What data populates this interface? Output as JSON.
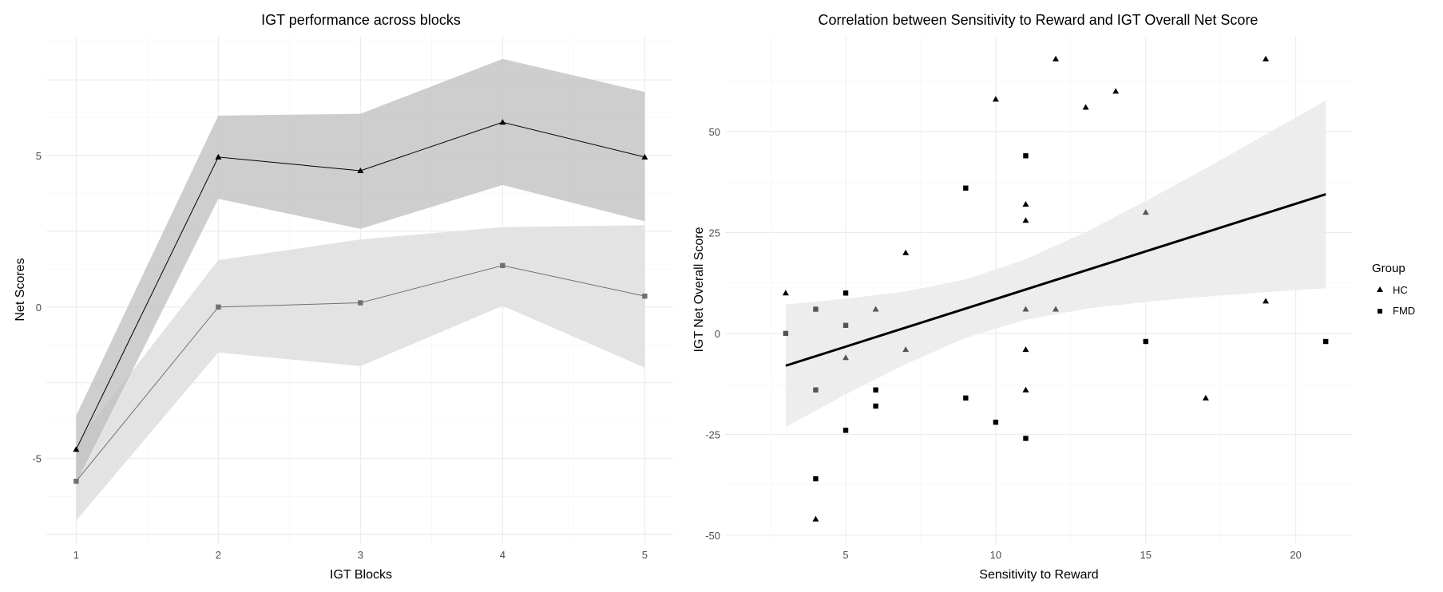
{
  "chart_data": [
    {
      "type": "line",
      "title": "IGT performance across blocks",
      "xlabel": "IGT Blocks",
      "ylabel": "Net Scores",
      "x": [
        1,
        2,
        3,
        4,
        5
      ],
      "xticks": [
        "1",
        "2",
        "3",
        "4",
        "5"
      ],
      "yticks": [
        -5,
        0,
        5
      ],
      "xlim": [
        0.79,
        5.2
      ],
      "ylim": [
        -7.8,
        8.95
      ],
      "grid": true,
      "series": [
        {
          "name": "FMD",
          "marker": "square",
          "color": "#707070",
          "band_color": "#e3e3e3",
          "values": [
            -5.75,
            0.0,
            0.14,
            1.37,
            0.36
          ],
          "upper": [
            -4.5,
            1.55,
            2.23,
            2.64,
            2.7
          ],
          "lower": [
            -7.05,
            -1.5,
            -1.95,
            0.04,
            -2.0
          ]
        },
        {
          "name": "HC",
          "marker": "triangle",
          "color": "#000000",
          "band_color": "#bdbdbd",
          "values": [
            -4.7,
            4.95,
            4.5,
            6.1,
            4.95
          ],
          "upper": [
            -3.58,
            6.32,
            6.38,
            8.19,
            7.1
          ],
          "lower": [
            -5.8,
            3.57,
            2.58,
            4.03,
            2.83
          ]
        }
      ]
    },
    {
      "type": "scatter",
      "title": "Correlation between Sensitivity to Reward and IGT Overall Net Score",
      "xlabel": "Sensitivity to Reward",
      "ylabel": "IGT Net Overall Score",
      "xticks": [
        5,
        10,
        15,
        20
      ],
      "yticks": [
        -50,
        -25,
        0,
        25,
        50
      ],
      "xlim": [
        0.98,
        21.9
      ],
      "ylim": [
        -52,
        73.7
      ],
      "grid": true,
      "legend": {
        "title": "Group",
        "position": "right",
        "entries": [
          {
            "label": "HC",
            "marker": "triangle"
          },
          {
            "label": "FMD",
            "marker": "square"
          }
        ]
      },
      "series": [
        {
          "name": "HC",
          "marker": "triangle",
          "points": [
            [
              12,
              68,
              "#000"
            ],
            [
              19,
              68,
              "#000"
            ],
            [
              10,
              58,
              "#000"
            ],
            [
              13,
              56,
              "#000"
            ],
            [
              14,
              60,
              "#000"
            ],
            [
              11,
              32,
              "#000"
            ],
            [
              11,
              28,
              "#000"
            ],
            [
              7,
              20,
              "#000"
            ],
            [
              3,
              10,
              "#000"
            ],
            [
              15,
              30,
              "#555"
            ],
            [
              6,
              6,
              "#555"
            ],
            [
              11,
              6,
              "#555"
            ],
            [
              12,
              6,
              "#555"
            ],
            [
              19,
              8,
              "#000"
            ],
            [
              5,
              -6,
              "#555"
            ],
            [
              7,
              -4,
              "#555"
            ],
            [
              11,
              -4,
              "#000"
            ],
            [
              11,
              -14,
              "#000"
            ],
            [
              17,
              -16,
              "#000"
            ],
            [
              4,
              -46,
              "#000"
            ]
          ]
        },
        {
          "name": "FMD",
          "marker": "square",
          "points": [
            [
              11,
              44,
              "#000"
            ],
            [
              9,
              36,
              "#000"
            ],
            [
              5,
              10,
              "#000"
            ],
            [
              4,
              6,
              "#555"
            ],
            [
              5,
              2,
              "#555"
            ],
            [
              3,
              0,
              "#555"
            ],
            [
              15,
              -2,
              "#000"
            ],
            [
              21,
              -2,
              "#000"
            ],
            [
              4,
              -14,
              "#555"
            ],
            [
              6,
              -14,
              "#000"
            ],
            [
              6,
              -18,
              "#000"
            ],
            [
              9,
              -16,
              "#000"
            ],
            [
              10,
              -22,
              "#000"
            ],
            [
              5,
              -24,
              "#000"
            ],
            [
              11,
              -26,
              "#000"
            ],
            [
              4,
              -36,
              "#000"
            ]
          ]
        }
      ],
      "fit": {
        "x": [
          3,
          5,
          7,
          9,
          11,
          13,
          15,
          17,
          19,
          21
        ],
        "y": [
          -8.0,
          -3.28,
          1.44,
          6.16,
          10.88,
          15.6,
          20.32,
          25.04,
          29.76,
          34.48
        ],
        "upper": [
          7.2,
          8.6,
          10.4,
          13.4,
          18.4,
          25.1,
          32.8,
          40.9,
          49.3,
          57.7
        ],
        "lower": [
          -23.2,
          -15.1,
          -7.6,
          -1.1,
          3.4,
          6.1,
          7.8,
          9.1,
          10.2,
          11.2
        ],
        "color": "#000000",
        "band_color": "#ebebeb"
      }
    }
  ]
}
